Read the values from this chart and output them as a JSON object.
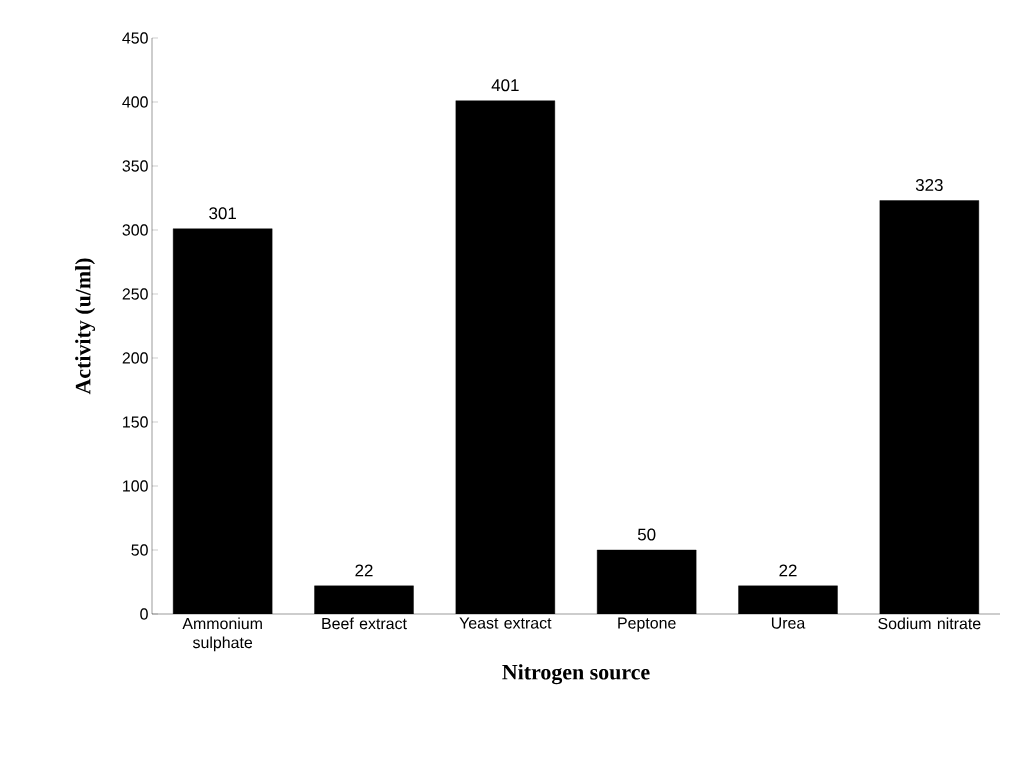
{
  "chart_data": {
    "type": "bar",
    "xlabel": "Nitrogen source",
    "ylabel": "Activity (u/ml)",
    "categories": [
      "Ammonium sulphate",
      "Beef extract",
      "Yeast extract",
      "Peptone",
      "Urea",
      "Sodium nitrate"
    ],
    "values": [
      301,
      22,
      401,
      50,
      22,
      323
    ],
    "color": "#000000",
    "ylim": [
      0,
      450
    ],
    "yticks": [
      0,
      50,
      100,
      150,
      200,
      250,
      300,
      350,
      400,
      450
    ],
    "grid": false,
    "data_labels": true
  }
}
